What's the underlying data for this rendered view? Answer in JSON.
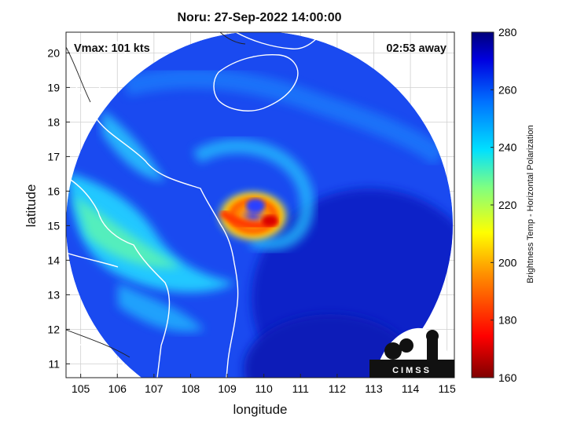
{
  "title": "Noru: 27-Sep-2022 14:00:00",
  "vmax_label": "Vmax: 101 kts",
  "time_away_label": "02:53 away",
  "axes": {
    "xlabel": "longitude",
    "ylabel": "latitude",
    "x_ticks": [
      "105",
      "106",
      "107",
      "108",
      "109",
      "110",
      "111",
      "112",
      "113",
      "114",
      "115"
    ],
    "y_ticks": [
      "11",
      "12",
      "13",
      "14",
      "15",
      "16",
      "17",
      "18",
      "19",
      "20"
    ],
    "xlim": [
      104.6,
      115.2
    ],
    "ylim": [
      10.6,
      20.6
    ]
  },
  "colorbar": {
    "label": "Brightness Temp - Horizontal Polarization",
    "ticks": [
      "280",
      "260",
      "240",
      "220",
      "200",
      "180",
      "160"
    ],
    "range": [
      160,
      280
    ],
    "colormap": "jet"
  },
  "logo": {
    "text": "CIMSS"
  },
  "colors": {
    "background_low_temp": "#7f0000",
    "background_high_temp": "#00008f",
    "coastline": "#ffffff",
    "eye_core": "#ff3a00"
  },
  "storm_center": {
    "lon": 109.8,
    "lat": 15.2
  }
}
